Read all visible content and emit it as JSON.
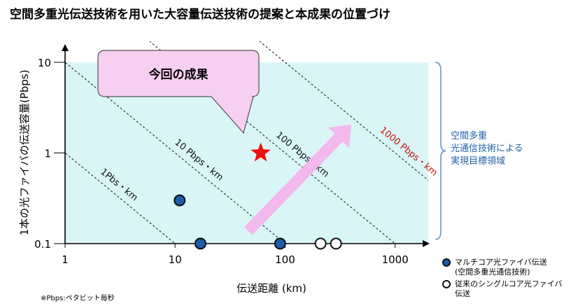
{
  "title": "空間多重光伝送技術を用いた大容量伝送技術の提案と本成果の位置づけ",
  "note": "※Pbps:ペタビット毎秒",
  "region_label": [
    "空間多重",
    "光通信技術による",
    "実現目標領域"
  ],
  "callout": "今回の成果",
  "colors": {
    "region_fill": "#d9f5f6",
    "marker_fill": "#1a5ea8",
    "star": "#ee1111",
    "arrow": "#f3b8ec",
    "callout_fill": "#f6cff1",
    "region_text": "#1f5fa8",
    "highlight_line": "#cc1111"
  },
  "legend": [
    {
      "marker": "filled-circle",
      "lines": [
        "マルチコア光ファイバ伝送",
        "(空間多重光通信技術)"
      ]
    },
    {
      "marker": "open-circle",
      "lines": [
        "従来のシングルコア光ファイバ",
        "伝送"
      ]
    }
  ],
  "chart_data": {
    "type": "scatter",
    "xlabel": "伝送距離 (km)",
    "ylabel": "1本の光ファイバの伝送容量(Pbps)",
    "xscale": "log",
    "yscale": "log",
    "xlim": [
      1,
      2000
    ],
    "ylim": [
      0.1,
      10
    ],
    "x_ticks": [
      {
        "v": 1,
        "label": "1"
      },
      {
        "v": 10,
        "label": "10"
      },
      {
        "v": 100,
        "label": "100"
      },
      {
        "v": 1000,
        "label": "1000"
      }
    ],
    "y_ticks": [
      {
        "v": 0.1,
        "label": "0.1"
      },
      {
        "v": 1,
        "label": "1"
      },
      {
        "v": 10,
        "label": "10"
      }
    ],
    "target_region": {
      "x": [
        1,
        2000
      ],
      "y": [
        0.1,
        10
      ]
    },
    "iso_lines": [
      {
        "product": 1,
        "label": "1Pbs・km",
        "highlight": false
      },
      {
        "product": 10,
        "label": "10 Pbps・km",
        "highlight": false
      },
      {
        "product": 100,
        "label": "100 Pbps・km",
        "highlight": false
      },
      {
        "product": 1000,
        "label": "1000 Pbps・km",
        "highlight": true
      }
    ],
    "series": [
      {
        "name": "マルチコア光ファイバ伝送(空間多重光通信技術)",
        "marker": "filled-circle",
        "points": [
          {
            "x": 11,
            "y": 0.3
          },
          {
            "x": 17,
            "y": 0.1
          },
          {
            "x": 90,
            "y": 0.1
          }
        ]
      },
      {
        "name": "従来のシングルコア光ファイバ伝送",
        "marker": "open-circle",
        "points": [
          {
            "x": 210,
            "y": 0.1
          },
          {
            "x": 290,
            "y": 0.1
          }
        ]
      },
      {
        "name": "今回の成果",
        "marker": "star",
        "points": [
          {
            "x": 60,
            "y": 1.0
          }
        ]
      }
    ]
  }
}
